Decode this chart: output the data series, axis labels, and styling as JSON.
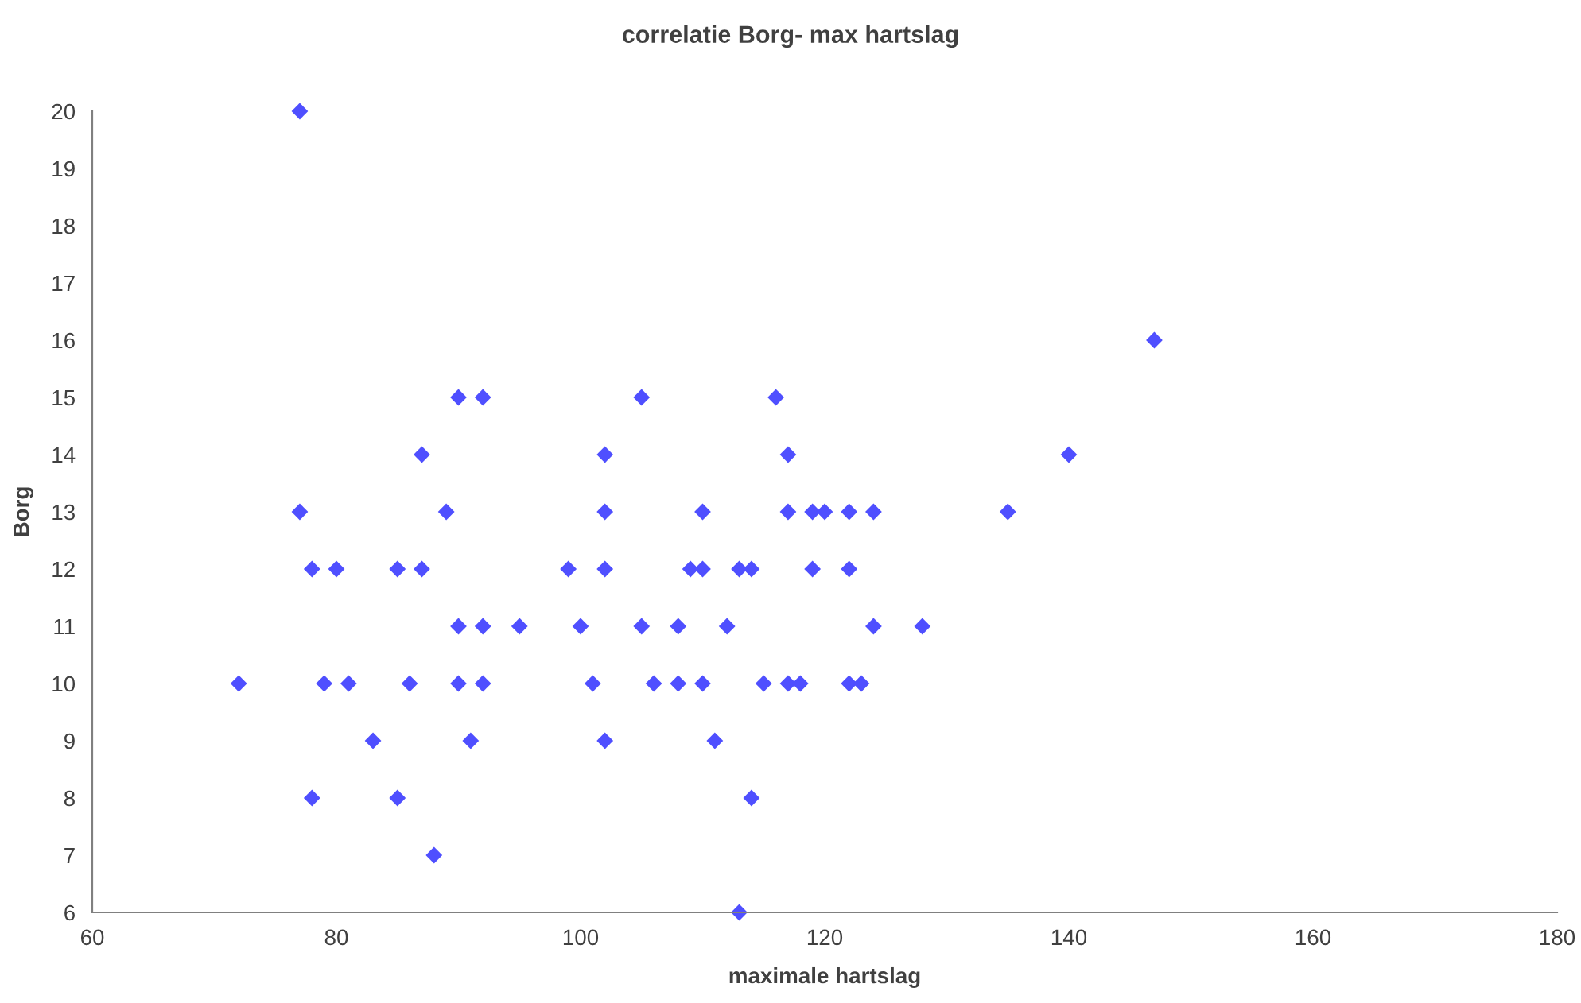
{
  "chart_data": {
    "type": "scatter",
    "title": "correlatie Borg- max hartslag",
    "xlabel": "maximale hartslag",
    "ylabel": "Borg",
    "x": [
      77,
      147,
      90,
      92,
      105,
      116,
      87,
      102,
      117,
      140,
      77,
      89,
      102,
      110,
      117,
      119,
      120,
      122,
      124,
      135,
      78,
      80,
      85,
      87,
      99,
      102,
      109,
      110,
      113,
      114,
      119,
      122,
      90,
      92,
      95,
      100,
      105,
      108,
      112,
      124,
      128,
      72,
      79,
      81,
      86,
      90,
      92,
      101,
      106,
      108,
      110,
      115,
      117,
      118,
      122,
      123,
      83,
      91,
      102,
      111,
      78,
      85,
      114,
      88,
      113
    ],
    "values": [
      20,
      16,
      15,
      15,
      15,
      15,
      14,
      14,
      14,
      14,
      13,
      13,
      13,
      13,
      13,
      13,
      13,
      13,
      13,
      13,
      12,
      12,
      12,
      12,
      12,
      12,
      12,
      12,
      12,
      12,
      12,
      12,
      11,
      11,
      11,
      11,
      11,
      11,
      11,
      11,
      11,
      10,
      10,
      10,
      10,
      10,
      10,
      10,
      10,
      10,
      10,
      10,
      10,
      10,
      10,
      10,
      9,
      9,
      9,
      9,
      8,
      8,
      8,
      7,
      6
    ],
    "color": "#4f4fff",
    "marker": "diamond",
    "xlim": [
      60,
      180
    ],
    "xticks": [
      60,
      80,
      100,
      120,
      140,
      160,
      180
    ],
    "ylim": [
      6,
      20
    ],
    "yticks": [
      6,
      7,
      8,
      9,
      10,
      11,
      12,
      13,
      14,
      15,
      16,
      17,
      18,
      19,
      20
    ],
    "grid": false,
    "legend": false
  }
}
